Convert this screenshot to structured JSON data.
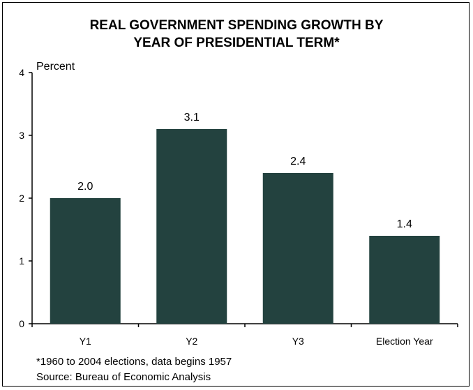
{
  "chart_data": {
    "type": "bar",
    "title_lines": [
      "REAL GOVERNMENT SPENDING GROWTH BY",
      "YEAR OF PRESIDENTIAL TERM*"
    ],
    "ylabel": "Percent",
    "categories": [
      "Y1",
      "Y2",
      "Y3",
      "Election Year"
    ],
    "values": [
      2.0,
      3.1,
      2.4,
      1.4
    ],
    "data_labels": [
      "2.0",
      "3.1",
      "2.4",
      "1.4"
    ],
    "ylim": [
      0,
      4
    ],
    "yticks": [
      "0",
      "1",
      "2",
      "3",
      "4"
    ],
    "bar_color": "#23423f",
    "grid": false,
    "legend": "none"
  },
  "footnotes": {
    "note": "*1960 to 2004 elections, data begins 1957",
    "source": "Source: Bureau of Economic Analysis"
  }
}
